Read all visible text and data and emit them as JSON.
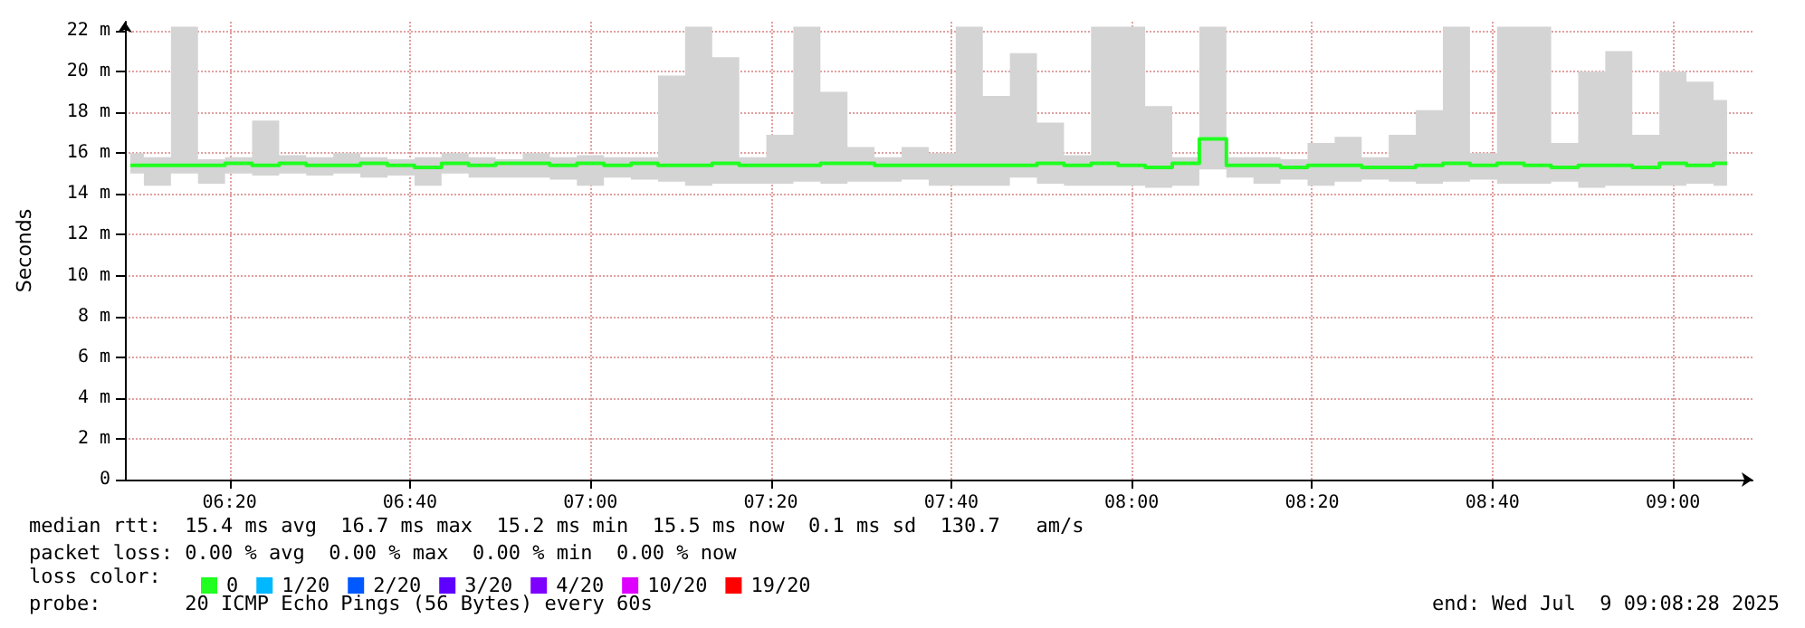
{
  "chart_data": {
    "type": "step",
    "ylabel": "Seconds",
    "legend_title": "loss color:",
    "annotations": [
      "median rtt:  15.4 ms avg  16.7 ms max  15.2 ms min  15.5 ms now  0.1 ms sd  130.7   am/s",
      "packet loss: 0.00 % avg  0.00 % max  0.00 % min  0.00 % now",
      "probe:       20 ICMP Echo Pings (56 Bytes) every 60s",
      "end: Wed Jul  9 09:08:28 2025"
    ],
    "x": [
      6.15,
      6.2,
      6.25,
      6.3,
      6.35,
      6.4,
      6.45,
      6.5,
      6.55,
      6.6,
      6.65,
      6.7,
      6.75,
      6.8,
      6.85,
      6.9,
      6.95,
      7.0,
      7.05,
      7.1,
      7.15,
      7.2,
      7.25,
      7.3,
      7.35,
      7.4,
      7.45,
      7.5,
      7.55,
      7.6,
      7.65,
      7.7,
      7.75,
      7.8,
      7.85,
      7.9,
      7.95,
      8.0,
      8.05,
      8.1,
      8.15,
      8.2,
      8.25,
      8.3,
      8.35,
      8.4,
      8.45,
      8.5,
      8.55,
      8.6,
      8.65,
      8.7,
      8.75,
      8.8,
      8.85,
      8.9,
      8.95,
      9.0,
      9.05,
      9.1
    ],
    "series": [
      {
        "name": "0",
        "color": "#20ff20",
        "values": [
          15.4,
          15.4,
          15.4,
          15.4,
          15.5,
          15.4,
          15.5,
          15.4,
          15.4,
          15.5,
          15.4,
          15.3,
          15.5,
          15.4,
          15.5,
          15.5,
          15.4,
          15.5,
          15.4,
          15.5,
          15.4,
          15.4,
          15.5,
          15.4,
          15.4,
          15.4,
          15.5,
          15.5,
          15.4,
          15.4,
          15.4,
          15.4,
          15.4,
          15.4,
          15.5,
          15.4,
          15.5,
          15.4,
          15.3,
          15.5,
          16.7,
          15.4,
          15.4,
          15.3,
          15.4,
          15.4,
          15.3,
          15.3,
          15.4,
          15.5,
          15.4,
          15.5,
          15.4,
          15.3,
          15.4,
          15.4,
          15.3,
          15.5,
          15.4,
          15.5
        ],
        "lower": [
          15.0,
          14.4,
          15.0,
          14.5,
          15.0,
          14.9,
          15.0,
          14.9,
          15.0,
          14.8,
          14.9,
          14.4,
          15.0,
          14.8,
          14.8,
          14.8,
          14.7,
          14.4,
          14.8,
          14.7,
          14.6,
          14.4,
          14.5,
          14.5,
          14.5,
          14.6,
          14.5,
          14.6,
          14.6,
          14.7,
          14.4,
          14.4,
          14.4,
          14.8,
          14.5,
          14.4,
          14.4,
          14.4,
          14.3,
          14.4,
          15.2,
          14.8,
          14.5,
          14.7,
          14.4,
          14.6,
          14.7,
          14.6,
          14.5,
          14.6,
          14.7,
          14.5,
          14.5,
          14.6,
          14.3,
          14.4,
          14.4,
          14.4,
          14.5,
          14.4
        ],
        "upper": [
          16.0,
          15.8,
          22.2,
          15.7,
          15.8,
          17.6,
          15.9,
          15.8,
          16.0,
          15.8,
          15.7,
          15.8,
          16.0,
          15.8,
          15.7,
          16.0,
          15.8,
          15.9,
          15.8,
          15.8,
          19.8,
          22.2,
          20.7,
          15.8,
          16.9,
          22.2,
          19.0,
          16.3,
          15.8,
          16.3,
          16.0,
          22.2,
          18.8,
          20.9,
          17.5,
          15.9,
          22.2,
          22.2,
          18.3,
          15.8,
          22.2,
          15.8,
          15.8,
          15.7,
          16.5,
          16.8,
          15.8,
          16.9,
          18.1,
          22.2,
          16.0,
          22.2,
          22.2,
          16.5,
          20.0,
          21.0,
          16.9,
          20.0,
          19.5,
          18.6
        ]
      },
      {
        "name": "1/20",
        "color": "#00b8ff",
        "values": [
          null,
          null,
          null,
          null,
          null,
          null,
          null,
          null,
          null,
          null,
          null,
          null,
          null,
          null,
          null,
          null,
          null,
          null,
          null,
          null,
          null,
          null,
          null,
          null,
          null,
          null,
          null,
          null,
          null,
          null,
          null,
          null,
          null,
          null,
          null,
          null,
          null,
          null,
          null,
          null,
          null,
          null,
          null,
          null,
          null,
          null,
          null,
          null,
          null,
          null,
          null,
          null,
          null,
          null,
          null,
          null,
          null,
          null,
          null,
          null
        ]
      },
      {
        "name": "2/20",
        "color": "#0059ff",
        "values": [
          null,
          null,
          null,
          null,
          null,
          null,
          null,
          null,
          null,
          null,
          null,
          null,
          null,
          null,
          null,
          null,
          null,
          null,
          null,
          null,
          null,
          null,
          null,
          null,
          null,
          null,
          null,
          null,
          null,
          null,
          null,
          null,
          null,
          null,
          null,
          null,
          null,
          null,
          null,
          null,
          null,
          null,
          null,
          null,
          null,
          null,
          null,
          null,
          null,
          null,
          null,
          null,
          null,
          null,
          null,
          null,
          null,
          null,
          null,
          null
        ]
      },
      {
        "name": "3/20",
        "color": "#5e00ff",
        "values": [
          null,
          null,
          null,
          null,
          null,
          null,
          null,
          null,
          null,
          null,
          null,
          null,
          null,
          null,
          null,
          null,
          null,
          null,
          null,
          null,
          null,
          null,
          null,
          null,
          null,
          null,
          null,
          null,
          null,
          null,
          null,
          null,
          null,
          null,
          null,
          null,
          null,
          null,
          null,
          null,
          null,
          null,
          null,
          null,
          null,
          null,
          null,
          null,
          null,
          null,
          null,
          null,
          null,
          null,
          null,
          null,
          null,
          null,
          null,
          null
        ]
      },
      {
        "name": "4/20",
        "color": "#7e00ff",
        "values": [
          null,
          null,
          null,
          null,
          null,
          null,
          null,
          null,
          null,
          null,
          null,
          null,
          null,
          null,
          null,
          null,
          null,
          null,
          null,
          null,
          null,
          null,
          null,
          null,
          null,
          null,
          null,
          null,
          null,
          null,
          null,
          null,
          null,
          null,
          null,
          null,
          null,
          null,
          null,
          null,
          null,
          null,
          null,
          null,
          null,
          null,
          null,
          null,
          null,
          null,
          null,
          null,
          null,
          null,
          null,
          null,
          null,
          null,
          null,
          null
        ]
      },
      {
        "name": "10/20",
        "color": "#dd00ff",
        "values": [
          null,
          null,
          null,
          null,
          null,
          null,
          null,
          null,
          null,
          null,
          null,
          null,
          null,
          null,
          null,
          null,
          null,
          null,
          null,
          null,
          null,
          null,
          null,
          null,
          null,
          null,
          null,
          null,
          null,
          null,
          null,
          null,
          null,
          null,
          null,
          null,
          null,
          null,
          null,
          null,
          null,
          null,
          null,
          null,
          null,
          null,
          null,
          null,
          null,
          null,
          null,
          null,
          null,
          null,
          null,
          null,
          null,
          null,
          null,
          null
        ]
      },
      {
        "name": "19/20",
        "color": "#ff0000",
        "values": [
          null,
          null,
          null,
          null,
          null,
          null,
          null,
          null,
          null,
          null,
          null,
          null,
          null,
          null,
          null,
          null,
          null,
          null,
          null,
          null,
          null,
          null,
          null,
          null,
          null,
          null,
          null,
          null,
          null,
          null,
          null,
          null,
          null,
          null,
          null,
          null,
          null,
          null,
          null,
          null,
          null,
          null,
          null,
          null,
          null,
          null,
          null,
          null,
          null,
          null,
          null,
          null,
          null,
          null,
          null,
          null,
          null,
          null,
          null,
          null
        ]
      }
    ],
    "xlim": [
      6.14,
      9.147
    ],
    "xticks": [
      {
        "value": 6.333333,
        "label": "06:20"
      },
      {
        "value": 6.666667,
        "label": "06:40"
      },
      {
        "value": 7,
        "label": "07:00"
      },
      {
        "value": 7.333333,
        "label": "07:20"
      },
      {
        "value": 7.666667,
        "label": "07:40"
      },
      {
        "value": 8,
        "label": "08:00"
      },
      {
        "value": 8.333333,
        "label": "08:20"
      },
      {
        "value": 8.666667,
        "label": "08:40"
      },
      {
        "value": 9,
        "label": "09:00"
      }
    ],
    "ylim": [
      0,
      22.44
    ],
    "yticks": [
      {
        "value": 0,
        "label": "0"
      },
      {
        "value": 2,
        "label": "2 m"
      },
      {
        "value": 4,
        "label": "4 m"
      },
      {
        "value": 6,
        "label": "6 m"
      },
      {
        "value": 8,
        "label": "8 m"
      },
      {
        "value": 10,
        "label": "10 m"
      },
      {
        "value": 12,
        "label": "12 m"
      },
      {
        "value": 14,
        "label": "14 m"
      },
      {
        "value": 16,
        "label": "16 m"
      },
      {
        "value": 18,
        "label": "18 m"
      },
      {
        "value": 20,
        "label": "20 m"
      },
      {
        "value": 22,
        "label": "22 m"
      }
    ],
    "grid": true,
    "legend": "bottom left",
    "marker": "none"
  }
}
